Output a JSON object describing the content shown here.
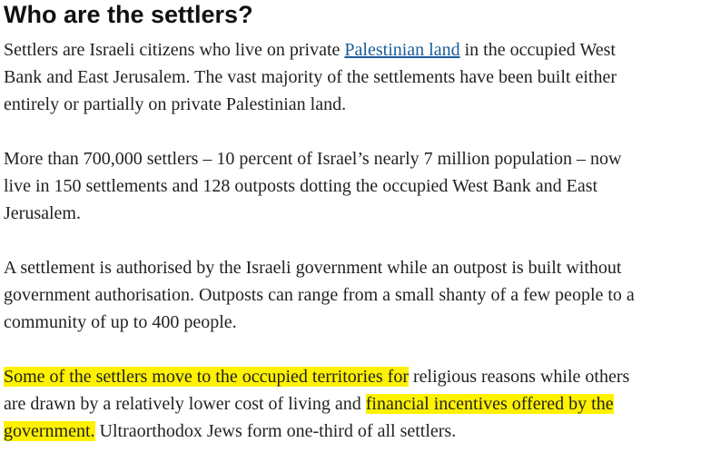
{
  "heading": "Who are the settlers?",
  "paragraphs": [
    {
      "lines": [
        [
          {
            "text": "Settlers are Israeli citizens who live on private ",
            "style": "plain"
          },
          {
            "text": "Palestinian land",
            "style": "link"
          },
          {
            "text": " in the occupied West",
            "style": "plain"
          }
        ],
        [
          {
            "text": "Bank and East Jerusalem. The vast majority of the settlements have been built either",
            "style": "plain"
          }
        ],
        [
          {
            "text": "entirely or partially on private Palestinian land.",
            "style": "plain"
          }
        ]
      ]
    },
    {
      "lines": [
        [
          {
            "text": "More than 700,000 settlers – 10 percent of Israel’s nearly 7 million population – now",
            "style": "plain"
          }
        ],
        [
          {
            "text": "live in 150 settlements and 128 outposts dotting the occupied West Bank and East",
            "style": "plain"
          }
        ],
        [
          {
            "text": "Jerusalem.",
            "style": "plain"
          }
        ]
      ]
    },
    {
      "lines": [
        [
          {
            "text": "A settlement is authorised by the Israeli government while an outpost is built without",
            "style": "plain"
          }
        ],
        [
          {
            "text": "government authorisation. Outposts can range from a small shanty of a few people to a",
            "style": "plain"
          }
        ],
        [
          {
            "text": "community of up to 400 people.",
            "style": "plain"
          }
        ]
      ]
    },
    {
      "lines": [
        [
          {
            "text": "Some of the settlers move to the occupied territories for",
            "style": "highlight"
          },
          {
            "text": " religious reasons while others",
            "style": "plain"
          }
        ],
        [
          {
            "text": "are drawn by a relatively lower cost of living and ",
            "style": "plain"
          },
          {
            "text": "financial incentives offered by the",
            "style": "highlight"
          }
        ],
        [
          {
            "text": "government.",
            "style": "highlight"
          },
          {
            "text": " Ultraorthodox Jews form one-third of all settlers.",
            "style": "plain"
          }
        ]
      ]
    }
  ]
}
